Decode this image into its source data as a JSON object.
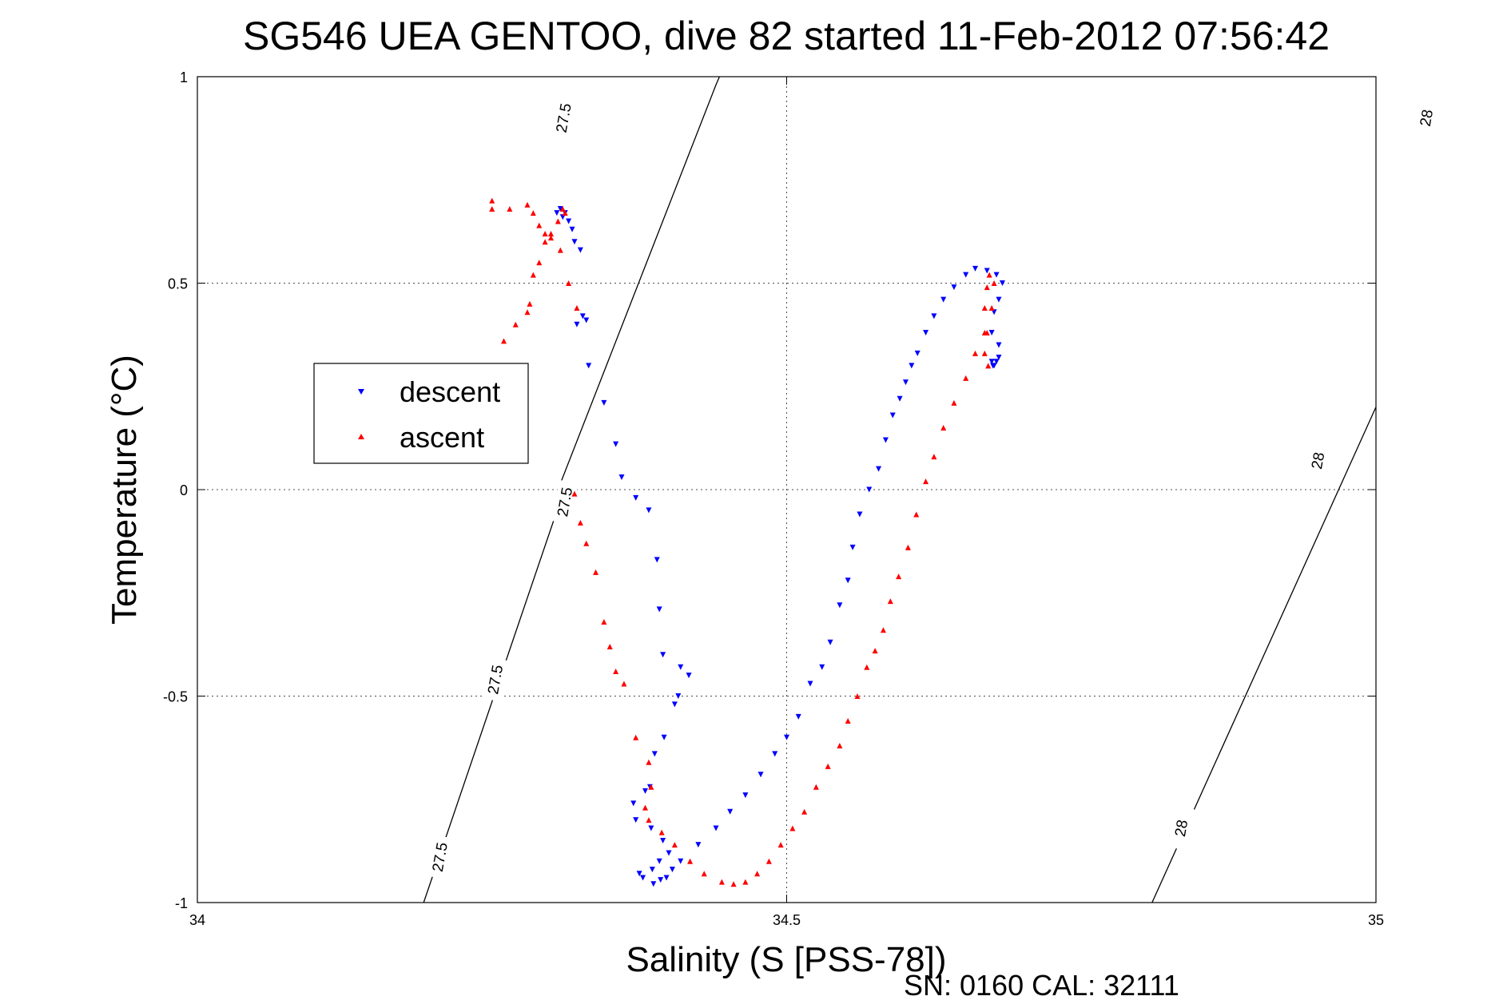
{
  "chart_data": {
    "type": "scatter",
    "title": "SG546 UEA GENTOO, dive 82 started 11-Feb-2012 07:56:42",
    "xlabel": "Salinity (S [PSS-78])",
    "ylabel": "Temperature (°C)",
    "xlim": [
      34,
      35
    ],
    "ylim": [
      -1,
      1
    ],
    "xticks": [
      34,
      34.5,
      35
    ],
    "xtick_labels": [
      "34",
      "34.5",
      "35"
    ],
    "yticks": [
      -1,
      -0.5,
      0,
      0.5,
      1
    ],
    "ytick_labels": [
      "-1",
      "-0.5",
      "0",
      "0.5",
      "1"
    ],
    "grid": true,
    "legend": {
      "placement": "upper-left",
      "entries": [
        {
          "label": "descent",
          "color": "#0000ff",
          "marker": "triangle-down"
        },
        {
          "label": "ascent",
          "color": "#ff0000",
          "marker": "triangle-up"
        }
      ]
    },
    "density_contours": [
      {
        "label": "27.5",
        "segments": [
          [
            34.192,
            -1.0
          ],
          [
            34.31,
            -0.01
          ],
          [
            34.306,
            0.0
          ],
          [
            34.44,
            0.98
          ],
          [
            34.443,
            1.0
          ]
        ],
        "label_positions": [
          [
            34.206,
            -0.89
          ],
          [
            34.253,
            -0.46
          ],
          [
            34.312,
            -0.03
          ],
          [
            34.311,
            0.9
          ]
        ]
      },
      {
        "label": "28",
        "segments": [
          [
            34.81,
            -1.0
          ],
          [
            35.0,
            0.2
          ],
          [
            35.115,
            1.0
          ]
        ],
        "label_positions": [
          [
            34.835,
            -0.82
          ],
          [
            34.951,
            0.07
          ],
          [
            35.043,
            0.9
          ]
        ]
      }
    ],
    "contour_labels": [
      {
        "text": "27.5",
        "x": 34.206,
        "y": -0.89,
        "rotation": -80
      },
      {
        "text": "27.5",
        "x": 34.253,
        "y": -0.46,
        "rotation": -80
      },
      {
        "text": "27.5",
        "x": 34.312,
        "y": -0.03,
        "rotation": -80
      },
      {
        "text": "27.5",
        "x": 34.311,
        "y": 0.9,
        "rotation": -80
      },
      {
        "text": "28",
        "x": 34.835,
        "y": -0.82,
        "rotation": -80
      },
      {
        "text": "28",
        "x": 34.951,
        "y": 0.07,
        "rotation": -80
      },
      {
        "text": "28",
        "x": 35.043,
        "y": 0.9,
        "rotation": -80
      }
    ],
    "series": [
      {
        "name": "descent",
        "color": "#0000ff",
        "marker": "triangle-down",
        "x": [
          34.312,
          34.308,
          34.305,
          34.31,
          34.315,
          34.318,
          34.32,
          34.325,
          34.33,
          34.327,
          34.322,
          34.332,
          34.345,
          34.355,
          34.36,
          34.372,
          34.383,
          34.39,
          34.392,
          34.395,
          34.41,
          34.417,
          34.408,
          34.405,
          34.396,
          34.388,
          34.384,
          34.38,
          34.37,
          34.372,
          34.385,
          34.395,
          34.4,
          34.392,
          34.386,
          34.375,
          34.378,
          34.387,
          34.393,
          34.398,
          34.403,
          34.41,
          34.425,
          34.44,
          34.452,
          34.465,
          34.478,
          34.49,
          34.5,
          34.51,
          34.52,
          34.53,
          34.537,
          34.545,
          34.552,
          34.556,
          34.562,
          34.57,
          34.578,
          34.584,
          34.59,
          34.596,
          34.601,
          34.606,
          34.611,
          34.618,
          34.625,
          34.633,
          34.642,
          34.652,
          34.66,
          34.67,
          34.678,
          34.683,
          34.68,
          34.676,
          34.674,
          34.68,
          34.68,
          34.678,
          34.676,
          34.675,
          34.674
        ],
        "y": [
          0.67,
          0.68,
          0.67,
          0.66,
          0.65,
          0.63,
          0.6,
          0.58,
          0.41,
          0.42,
          0.4,
          0.3,
          0.21,
          0.11,
          0.03,
          -0.02,
          -0.05,
          -0.17,
          -0.29,
          -0.4,
          -0.43,
          -0.45,
          -0.5,
          -0.52,
          -0.6,
          -0.64,
          -0.72,
          -0.73,
          -0.76,
          -0.8,
          -0.82,
          -0.85,
          -0.88,
          -0.9,
          -0.92,
          -0.93,
          -0.94,
          -0.955,
          -0.945,
          -0.94,
          -0.92,
          -0.9,
          -0.86,
          -0.82,
          -0.78,
          -0.74,
          -0.69,
          -0.64,
          -0.6,
          -0.55,
          -0.47,
          -0.43,
          -0.37,
          -0.28,
          -0.22,
          -0.14,
          -0.06,
          0.0,
          0.05,
          0.12,
          0.18,
          0.22,
          0.26,
          0.3,
          0.33,
          0.38,
          0.42,
          0.46,
          0.49,
          0.52,
          0.535,
          0.53,
          0.52,
          0.5,
          0.46,
          0.43,
          0.38,
          0.35,
          0.32,
          0.31,
          0.3,
          0.3,
          0.31
        ]
      },
      {
        "name": "ascent",
        "color": "#ff0000",
        "marker": "triangle-up",
        "x": [
          34.31,
          34.312,
          34.306,
          34.3,
          34.295,
          34.29,
          34.285,
          34.282,
          34.28,
          34.27,
          34.26,
          34.25,
          34.25,
          34.265,
          34.28,
          34.285,
          34.29,
          34.295,
          34.3,
          34.308,
          34.315,
          34.322,
          34.32,
          34.325,
          34.33,
          34.338,
          34.345,
          34.35,
          34.355,
          34.362,
          34.372,
          34.383,
          34.385,
          34.38,
          34.383,
          34.394,
          34.405,
          34.418,
          34.43,
          34.445,
          34.455,
          34.465,
          34.475,
          34.485,
          34.495,
          34.505,
          34.515,
          34.525,
          34.535,
          34.545,
          34.552,
          34.56,
          34.568,
          34.575,
          34.582,
          34.588,
          34.595,
          34.603,
          34.61,
          34.618,
          34.625,
          34.633,
          34.642,
          34.652,
          34.66,
          34.668,
          34.674,
          34.676,
          34.672,
          34.67,
          34.668,
          34.67,
          34.668,
          34.671
        ],
        "y": [
          0.68,
          0.67,
          0.65,
          0.62,
          0.6,
          0.55,
          0.52,
          0.45,
          0.43,
          0.4,
          0.36,
          0.7,
          0.68,
          0.68,
          0.69,
          0.67,
          0.64,
          0.62,
          0.61,
          0.58,
          0.5,
          0.44,
          -0.01,
          -0.08,
          -0.13,
          -0.2,
          -0.32,
          -0.38,
          -0.44,
          -0.47,
          -0.6,
          -0.66,
          -0.72,
          -0.77,
          -0.8,
          -0.83,
          -0.86,
          -0.9,
          -0.93,
          -0.95,
          -0.955,
          -0.95,
          -0.93,
          -0.9,
          -0.86,
          -0.82,
          -0.78,
          -0.72,
          -0.67,
          -0.62,
          -0.56,
          -0.5,
          -0.43,
          -0.39,
          -0.34,
          -0.27,
          -0.21,
          -0.14,
          -0.06,
          0.02,
          0.08,
          0.15,
          0.21,
          0.27,
          0.33,
          0.38,
          0.44,
          0.5,
          0.52,
          0.49,
          0.44,
          0.38,
          0.33,
          0.3
        ]
      }
    ],
    "footer": "SN: 0160  CAL: 32111"
  }
}
